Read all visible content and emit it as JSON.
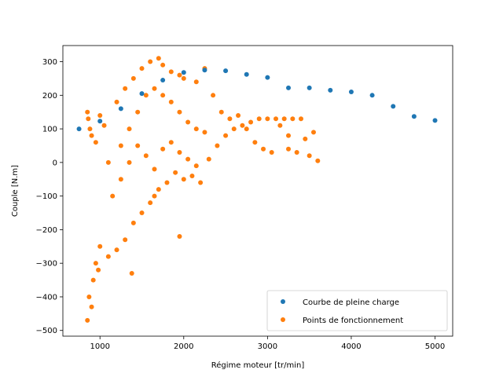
{
  "chart_data": {
    "type": "scatter",
    "title": "",
    "xlabel": "Régime moteur [tr/min]",
    "ylabel": "Couple [N.m]",
    "xlim": [
      557,
      5211
    ],
    "ylim": [
      -517,
      348
    ],
    "xticks": [
      1000,
      2000,
      3000,
      4000,
      5000
    ],
    "yticks": [
      -500,
      -400,
      -300,
      -200,
      -100,
      0,
      100,
      200,
      300
    ],
    "xtick_labels": [
      "1000",
      "2000",
      "3000",
      "4000",
      "5000"
    ],
    "ytick_labels": [
      "−500",
      "−400",
      "−300",
      "−200",
      "−100",
      "0",
      "100",
      "200",
      "300"
    ],
    "grid": false,
    "legend_position": "bottom-right",
    "series": [
      {
        "name": "Courbe de pleine charge",
        "color": "#1f77b4",
        "x": [
          750,
          1000,
          1250,
          1500,
          1750,
          2000,
          2250,
          2500,
          2750,
          3000,
          3250,
          3500,
          3750,
          4000,
          4250,
          4500,
          4750,
          5000
        ],
        "y": [
          100,
          123,
          160,
          205,
          245,
          268,
          275,
          273,
          262,
          253,
          222,
          222,
          215,
          210,
          200,
          167,
          137,
          125
        ]
      },
      {
        "name": "Points de fonctionnement",
        "color": "#ff7f0e",
        "x": [
          850,
          870,
          900,
          920,
          950,
          980,
          1000,
          1100,
          1200,
          1300,
          1380,
          1400,
          1500,
          1600,
          1650,
          1700,
          1800,
          1900,
          1950,
          2000,
          2100,
          2200,
          2300,
          2400,
          2500,
          2600,
          2700,
          2800,
          2900,
          3000,
          3050,
          3100,
          3200,
          3250,
          3300,
          3350,
          3400,
          3500,
          3550,
          3600,
          850,
          860,
          880,
          900,
          950,
          1000,
          1050,
          1200,
          1300,
          1400,
          1500,
          1600,
          1700,
          1750,
          1850,
          1950,
          2000,
          2150,
          2250,
          2350,
          2450,
          2550,
          2650,
          2750,
          2850,
          2950,
          3150,
          3250,
          3450,
          1100,
          1250,
          1350,
          1450,
          1550,
          1650,
          1750,
          1850,
          1950,
          2050,
          2150,
          2250,
          1150,
          1250,
          1350,
          1450,
          1550,
          1650,
          1750,
          1850,
          1950,
          2050,
          2150
        ],
        "y": [
          -470,
          -400,
          -430,
          -350,
          -300,
          -320,
          -250,
          -280,
          -260,
          -230,
          -330,
          -180,
          -150,
          -120,
          -100,
          -80,
          -60,
          -30,
          -220,
          -50,
          -40,
          -60,
          10,
          50,
          80,
          100,
          110,
          120,
          130,
          130,
          30,
          130,
          130,
          40,
          130,
          30,
          130,
          20,
          90,
          5,
          150,
          130,
          100,
          80,
          60,
          140,
          110,
          180,
          220,
          250,
          280,
          300,
          310,
          290,
          270,
          260,
          250,
          240,
          280,
          200,
          150,
          130,
          140,
          100,
          60,
          40,
          110,
          80,
          70,
          0,
          50,
          100,
          150,
          200,
          220,
          200,
          180,
          150,
          120,
          100,
          90,
          -100,
          -50,
          0,
          50,
          20,
          -20,
          40,
          60,
          30,
          10,
          -10
        ]
      }
    ]
  }
}
